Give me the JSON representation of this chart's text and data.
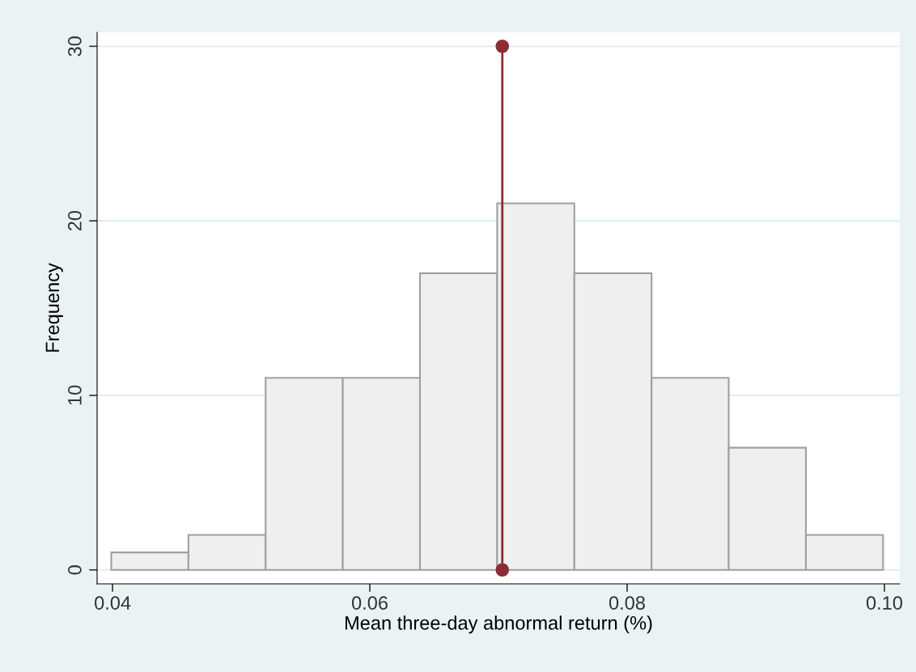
{
  "chart_data": {
    "type": "histogram",
    "xlabel": "Mean three-day abnormal return (%)",
    "ylabel": "Frequency",
    "bins": [
      0.0399,
      0.0459,
      0.0519,
      0.0579,
      0.0639,
      0.0699,
      0.0759,
      0.0819,
      0.0879,
      0.0939,
      0.0999
    ],
    "values": [
      1,
      2,
      11,
      11,
      17,
      21,
      17,
      11,
      7,
      2
    ],
    "color": "#efefef",
    "series": [
      {
        "type": "line",
        "x": [
          0.0703,
          0.0703
        ],
        "values": [
          0,
          30
        ],
        "color": "#8c2d35",
        "marker": "circle"
      }
    ],
    "xlim": [
      0.0388,
      0.1012
    ],
    "ylim": [
      -0.8,
      30.8
    ],
    "xticks": [
      0.04,
      0.06,
      0.08,
      {
        "value": 0.1,
        "label": "0.10"
      }
    ],
    "yticks": [
      0,
      10,
      20,
      30
    ],
    "grid": "y"
  }
}
